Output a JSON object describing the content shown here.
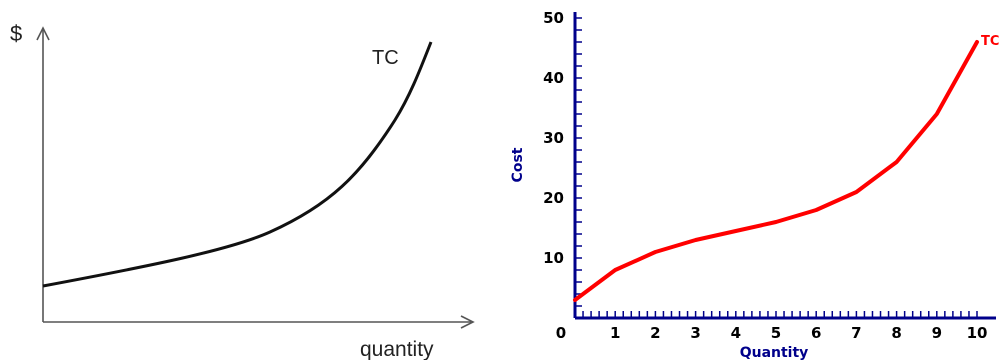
{
  "chart_data": [
    {
      "type": "line",
      "title": "",
      "ylabel": "$",
      "xlabel": "quantity",
      "series": [
        {
          "name": "TC",
          "color": "#000000",
          "shape": "convex-increasing",
          "x": [
            0,
            1,
            2,
            3,
            4,
            5,
            6,
            7,
            8,
            9,
            10
          ],
          "y": [
            0.12,
            0.15,
            0.18,
            0.22,
            0.27,
            0.33,
            0.42,
            0.55,
            0.72,
            0.88,
            1.0
          ]
        }
      ],
      "grid": false,
      "axis_ticks": false
    },
    {
      "type": "line",
      "title": "",
      "xlabel": "Quantity",
      "ylabel": "Cost",
      "xlim": [
        0,
        10
      ],
      "ylim": [
        0,
        50
      ],
      "x_ticks": [
        0,
        1,
        2,
        3,
        4,
        5,
        6,
        7,
        8,
        9,
        10
      ],
      "y_ticks": [
        10,
        20,
        30,
        40,
        50
      ],
      "series": [
        {
          "name": "TC",
          "color": "#ff0000",
          "x": [
            0,
            1,
            2,
            3,
            4,
            5,
            6,
            7,
            8,
            9,
            10
          ],
          "y": [
            3,
            8,
            11,
            13,
            14.5,
            16,
            18,
            21,
            26,
            34,
            46
          ]
        }
      ],
      "axis_color": "#00008b",
      "grid": false,
      "legend": "none"
    }
  ]
}
